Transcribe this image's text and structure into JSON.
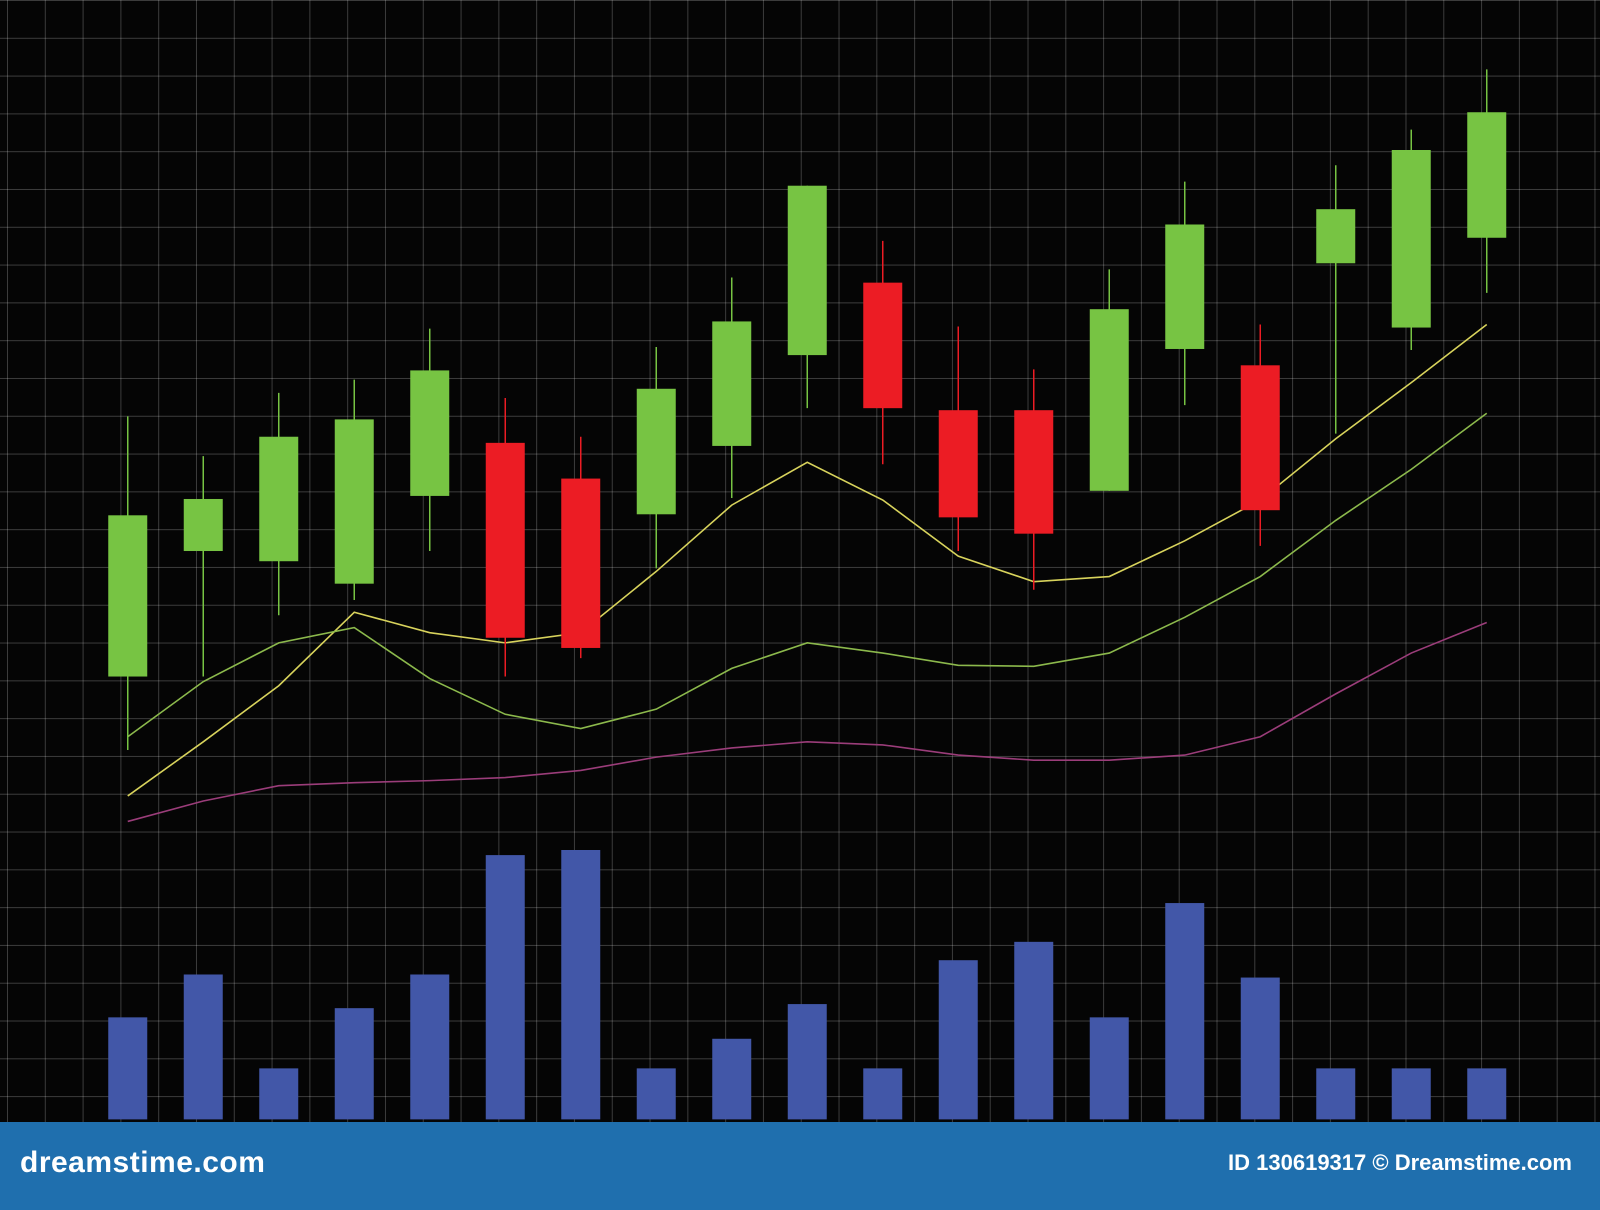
{
  "chart_data": [
    {
      "type": "candlestick",
      "categories": [
        null,
        null,
        null,
        null,
        null,
        null,
        null,
        null,
        null,
        null,
        null,
        null,
        null,
        null,
        null,
        null,
        null,
        null,
        null
      ],
      "open": [
        43.7,
        56,
        55,
        52.8,
        61.4,
        66.6,
        63.1,
        59.6,
        66.3,
        75.2,
        82.3,
        69.8,
        69.8,
        61.9,
        75.8,
        74.2,
        84.2,
        77.9,
        86.7
      ],
      "high": [
        69.2,
        65.3,
        71.5,
        72.8,
        77.8,
        71,
        67.2,
        76,
        82.8,
        91.8,
        86.4,
        78,
        73.8,
        83.6,
        92.2,
        78.2,
        93.8,
        97.3,
        103.2
      ],
      "low": [
        36.5,
        43.7,
        49.7,
        51.2,
        56,
        43.7,
        45.5,
        54.3,
        61.2,
        70,
        64.5,
        56,
        52.2,
        61.9,
        70.3,
        56.5,
        67.5,
        75.7,
        81.3
      ],
      "close": [
        59.5,
        61.1,
        67.2,
        68.9,
        73.7,
        47.5,
        46.5,
        71.9,
        78.5,
        91.8,
        70,
        59.3,
        57.7,
        79.7,
        88,
        60,
        89.5,
        95.3,
        99
      ],
      "up_color": "#77c443",
      "down_color": "#ec1c24",
      "ylim": [
        0,
        110
      ],
      "lines": [
        {
          "color": "#d8d35c",
          "values": [
            32,
            37.3,
            42.8,
            50,
            48,
            47,
            48,
            54,
            60.5,
            64.7,
            61,
            55.5,
            53,
            53.5,
            57,
            61,
            67,
            72.5,
            78.2
          ]
        },
        {
          "color": "#8cb94c",
          "values": [
            37.8,
            43.2,
            47,
            48.5,
            43.5,
            40,
            38.6,
            40.5,
            44.5,
            47,
            46,
            44.8,
            44.7,
            46,
            49.5,
            53.5,
            59,
            64,
            69.5
          ]
        },
        {
          "color": "#9b3d7a",
          "values": [
            29.5,
            31.5,
            33,
            33.3,
            33.5,
            33.8,
            34.5,
            35.8,
            36.7,
            37.3,
            37,
            36,
            35.5,
            35.5,
            36,
            37.8,
            42,
            46,
            49
          ]
        }
      ]
    },
    {
      "type": "bar",
      "categories": [
        null,
        null,
        null,
        null,
        null,
        null,
        null,
        null,
        null,
        null,
        null,
        null,
        null,
        null,
        null,
        null,
        null,
        null,
        null
      ],
      "values": [
        10,
        14.2,
        5,
        10.9,
        14.2,
        25.9,
        26.4,
        5,
        7.9,
        11.3,
        5,
        15.6,
        17.4,
        10,
        21.2,
        13.9,
        5,
        5,
        5
      ],
      "color": "#4257a8",
      "ylim": [
        0,
        30
      ]
    }
  ],
  "footer": {
    "site": "dreamstime.com",
    "credit": "ID 130619317 © Dreamstime.com"
  }
}
